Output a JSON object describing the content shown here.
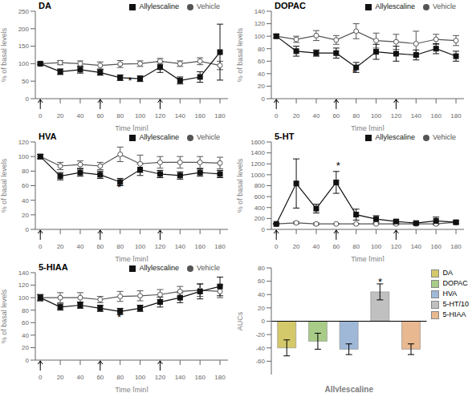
{
  "chart_data": [
    {
      "type": "line",
      "title": "DA",
      "xlabel": "Time [min]",
      "ylabel": "% of basal levels",
      "x": [
        0,
        20,
        40,
        60,
        80,
        100,
        120,
        140,
        160,
        180
      ],
      "xlim": [
        -5,
        188
      ],
      "xticks": [
        0,
        20,
        40,
        60,
        80,
        100,
        120,
        140,
        160,
        180
      ],
      "ylim": [
        0,
        250
      ],
      "yticks": [
        0,
        50,
        100,
        150,
        200,
        250
      ],
      "legend": "upper right",
      "series": [
        {
          "name": "Vehicle",
          "color": "#555555",
          "marker": "circle",
          "values": [
            100,
            103,
            100,
            95,
            99,
            100,
            107,
            100,
            107,
            95
          ],
          "errors": [
            3,
            6,
            8,
            10,
            10,
            8,
            8,
            8,
            10,
            12
          ]
        },
        {
          "name": "Allylescaline",
          "color": "#111111",
          "marker": "square",
          "values": [
            100,
            77,
            83,
            75,
            60,
            57,
            90,
            52,
            62,
            133
          ],
          "errors": [
            3,
            8,
            10,
            8,
            8,
            8,
            15,
            10,
            15,
            80
          ]
        }
      ],
      "annotations": [
        {
          "text": "*",
          "x": 90,
          "y": 52
        }
      ],
      "arrow_x": [
        0,
        60,
        120
      ]
    },
    {
      "type": "line",
      "title": "DOPAC",
      "xlabel": "Time [min]",
      "ylabel": "% of basal levels",
      "x": [
        0,
        20,
        40,
        60,
        80,
        100,
        120,
        140,
        160,
        180
      ],
      "xlim": [
        -5,
        188
      ],
      "xticks": [
        0,
        20,
        40,
        60,
        80,
        100,
        120,
        140,
        160,
        180
      ],
      "ylim": [
        0,
        140
      ],
      "yticks": [
        0,
        20,
        40,
        60,
        80,
        100,
        120,
        140
      ],
      "legend": "upper right",
      "series": [
        {
          "name": "Vehicle",
          "color": "#555555",
          "marker": "circle",
          "values": [
            100,
            95,
            101,
            94,
            108,
            93,
            91,
            88,
            95,
            93
          ],
          "errors": [
            3,
            5,
            8,
            7,
            12,
            12,
            12,
            20,
            8,
            8
          ]
        },
        {
          "name": "Allylescaline",
          "color": "#111111",
          "marker": "square",
          "values": [
            100,
            76,
            73,
            73,
            50,
            75,
            72,
            70,
            80,
            68
          ],
          "errors": [
            3,
            8,
            5,
            8,
            8,
            12,
            12,
            8,
            8,
            8
          ]
        }
      ],
      "annotations": [
        {
          "text": "*",
          "x": 78,
          "y": 43
        }
      ],
      "arrow_x": [
        0,
        60,
        120
      ]
    },
    {
      "type": "line",
      "title": "HVA",
      "xlabel": "Time [min]",
      "ylabel": "% of basal levels",
      "x": [
        0,
        20,
        40,
        60,
        80,
        100,
        120,
        140,
        160,
        180
      ],
      "xlim": [
        -5,
        188
      ],
      "xticks": [
        0,
        20,
        40,
        60,
        80,
        100,
        120,
        140,
        160,
        180
      ],
      "ylim": [
        0,
        120
      ],
      "yticks": [
        0,
        20,
        40,
        60,
        80,
        100,
        120
      ],
      "legend": "upper right",
      "series": [
        {
          "name": "Vehicle",
          "color": "#555555",
          "marker": "circle",
          "values": [
            100,
            87,
            89,
            87,
            103,
            90,
            92,
            92,
            92,
            91
          ],
          "errors": [
            3,
            5,
            5,
            5,
            10,
            12,
            8,
            8,
            8,
            8
          ]
        },
        {
          "name": "Allylescaline",
          "color": "#111111",
          "marker": "square",
          "values": [
            100,
            73,
            78,
            75,
            65,
            82,
            76,
            74,
            78,
            76
          ],
          "errors": [
            3,
            5,
            5,
            5,
            5,
            8,
            5,
            5,
            5,
            5
          ]
        }
      ],
      "annotations": [
        {
          "text": "*",
          "x": 79,
          "y": 58
        }
      ],
      "arrow_x": [
        0,
        60,
        120
      ]
    },
    {
      "type": "line",
      "title": "5-HT",
      "xlabel": "Time [min]",
      "ylabel": "% of basal levels",
      "x": [
        0,
        20,
        40,
        60,
        80,
        100,
        120,
        140,
        160,
        180
      ],
      "xlim": [
        -5,
        188
      ],
      "xticks": [
        0,
        20,
        40,
        60,
        80,
        100,
        120,
        140,
        160,
        180
      ],
      "ylim": [
        0,
        1600
      ],
      "yticks": [
        0,
        200,
        400,
        600,
        800,
        1000,
        1200,
        1400,
        1600
      ],
      "legend": "upper right",
      "series": [
        {
          "name": "Vehicle",
          "color": "#555555",
          "marker": "circle",
          "values": [
            100,
            120,
            100,
            100,
            100,
            100,
            100,
            100,
            100,
            130
          ],
          "errors": [
            10,
            20,
            20,
            10,
            10,
            10,
            20,
            15,
            10,
            30
          ]
        },
        {
          "name": "Allylescaline",
          "color": "#111111",
          "marker": "square",
          "values": [
            100,
            840,
            380,
            860,
            270,
            190,
            145,
            115,
            155,
            130
          ],
          "errors": [
            10,
            450,
            80,
            200,
            100,
            60,
            30,
            20,
            70,
            25
          ]
        }
      ],
      "annotations": [
        {
          "text": "*",
          "x": 62,
          "y": 1180
        }
      ],
      "arrow_x": [
        0,
        60,
        120
      ]
    },
    {
      "type": "line",
      "title": "5-HIAA",
      "xlabel": "Time [min]",
      "ylabel": "% of basal levels",
      "x": [
        0,
        20,
        40,
        60,
        80,
        100,
        120,
        140,
        160,
        180
      ],
      "xlim": [
        -5,
        188
      ],
      "xticks": [
        0,
        20,
        40,
        60,
        80,
        100,
        120,
        140,
        160,
        180
      ],
      "ylim": [
        0,
        140
      ],
      "yticks": [
        0,
        20,
        40,
        60,
        80,
        100,
        120,
        140
      ],
      "legend": "upper right",
      "series": [
        {
          "name": "Vehicle",
          "color": "#555555",
          "marker": "circle",
          "values": [
            100,
            100,
            100,
            97,
            102,
            103,
            105,
            110,
            112,
            110
          ],
          "errors": [
            5,
            8,
            8,
            5,
            8,
            8,
            8,
            8,
            10,
            10
          ]
        },
        {
          "name": "Allylescaline",
          "color": "#111111",
          "marker": "square",
          "values": [
            100,
            85,
            88,
            83,
            78,
            83,
            93,
            100,
            110,
            118
          ],
          "errors": [
            5,
            5,
            5,
            5,
            5,
            5,
            8,
            8,
            12,
            15
          ]
        }
      ],
      "annotations": [
        {
          "text": "*",
          "x": 79,
          "y": 70
        }
      ],
      "arrow_x": [
        0,
        60,
        120
      ]
    },
    {
      "type": "bar",
      "xlabel": "Allylescaline",
      "ylabel": "AUCs",
      "categories": [
        "DA",
        "DOPAC",
        "HVA",
        "5-HT/10",
        "5-HIAA"
      ],
      "values": [
        -40,
        -30,
        -42,
        44,
        -42
      ],
      "errors": [
        12,
        12,
        8,
        12,
        8
      ],
      "colors": [
        "#d4c96a",
        "#a8cc88",
        "#a0b8d8",
        "#c0c0c0",
        "#e8b890"
      ],
      "ylim": [
        -80,
        80
      ],
      "yticks": [
        -60,
        -40,
        -20,
        0,
        20,
        40,
        60,
        80
      ],
      "tick_labels": "y",
      "legend": "upper right",
      "annotations": [
        {
          "text": "*",
          "category": "5-HT/10"
        }
      ],
      "hlines": [
        0
      ]
    }
  ]
}
